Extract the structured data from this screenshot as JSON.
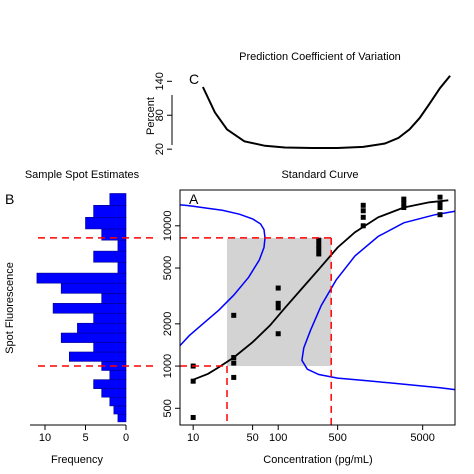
{
  "chart_data": [
    {
      "id": "C",
      "type": "line",
      "panel_letter": "C",
      "title": "Prediction Coefficient of Variation",
      "xlabel": "",
      "ylabel": "Percent",
      "xscale": "log",
      "xlim": [
        7,
        12000
      ],
      "ylim": [
        15,
        160
      ],
      "yticks": [
        20,
        80,
        140
      ],
      "series": [
        {
          "name": "",
          "color": "#000000",
          "x": [
            13,
            18,
            25,
            40,
            70,
            120,
            250,
            500,
            1000,
            1800,
            2600,
            3500,
            4600,
            6000,
            8000,
            10500
          ],
          "y": [
            130,
            85,
            55,
            34,
            26,
            23,
            22,
            22,
            24,
            30,
            40,
            55,
            75,
            100,
            128,
            150
          ]
        }
      ]
    },
    {
      "id": "B",
      "type": "bar",
      "orientation": "horizontal",
      "panel_letter": "B",
      "title": "Sample Spot Estimates",
      "xlabel": "Frequency",
      "ylabel": "Spot Fluorescence",
      "xlim": [
        12,
        0
      ],
      "xticks": [
        10,
        5,
        0
      ],
      "color": "#0000ff",
      "bins": [
        {
          "from": 400,
          "to": 455,
          "count": 1
        },
        {
          "from": 455,
          "to": 520,
          "count": 1.5
        },
        {
          "from": 520,
          "to": 600,
          "count": 2
        },
        {
          "from": 600,
          "to": 690,
          "count": 3
        },
        {
          "from": 690,
          "to": 800,
          "count": 4
        },
        {
          "from": 800,
          "to": 930,
          "count": 2
        },
        {
          "from": 930,
          "to": 1080,
          "count": 3
        },
        {
          "from": 1080,
          "to": 1260,
          "count": 7
        },
        {
          "from": 1260,
          "to": 1470,
          "count": 4
        },
        {
          "from": 1470,
          "to": 1720,
          "count": 8
        },
        {
          "from": 1720,
          "to": 2020,
          "count": 6
        },
        {
          "from": 2020,
          "to": 2380,
          "count": 4
        },
        {
          "from": 2380,
          "to": 2800,
          "count": 9
        },
        {
          "from": 2800,
          "to": 3300,
          "count": 3
        },
        {
          "from": 3300,
          "to": 3900,
          "count": 8
        },
        {
          "from": 3900,
          "to": 4600,
          "count": 11
        },
        {
          "from": 4600,
          "to": 5500,
          "count": 1
        },
        {
          "from": 5500,
          "to": 6600,
          "count": 4
        },
        {
          "from": 6600,
          "to": 7900,
          "count": 1
        },
        {
          "from": 7900,
          "to": 9500,
          "count": 3
        },
        {
          "from": 9500,
          "to": 11500,
          "count": 5
        },
        {
          "from": 11500,
          "to": 14000,
          "count": 4
        },
        {
          "from": 14000,
          "to": 17000,
          "count": 2
        }
      ]
    },
    {
      "id": "A",
      "type": "scatter",
      "panel_letter": "A",
      "title": "Standard Curve",
      "xlabel": "Concentration (pg/mL)",
      "ylabel": "",
      "xscale": "log",
      "yscale": "log",
      "xlim": [
        7,
        12000
      ],
      "ylim": [
        380,
        18000
      ],
      "xticks": [
        10,
        50,
        100,
        500,
        5000
      ],
      "yticks": [
        500,
        1000,
        2000,
        5000,
        10000
      ],
      "shaded_region": {
        "x": [
          25,
          420
        ],
        "y": [
          1000,
          8200
        ],
        "color": "#d3d3d3"
      },
      "reference_lines": {
        "y_low": 1000,
        "y_high": 8200,
        "x_low": 25,
        "x_high": 420,
        "color": "#ff0000"
      },
      "points": {
        "x": [
          10,
          10,
          10,
          30,
          30,
          30,
          30,
          100,
          100,
          100,
          100,
          300,
          300,
          300,
          300,
          1000,
          1000,
          1000,
          1000,
          3000,
          3000,
          3000,
          8000,
          8000,
          8000,
          8000
        ],
        "y": [
          430,
          780,
          1000,
          830,
          1050,
          1150,
          2300,
          1700,
          2600,
          2800,
          3600,
          6300,
          6800,
          7300,
          7900,
          10000,
          11500,
          12800,
          14000,
          13500,
          14500,
          15500,
          12000,
          13500,
          14500,
          16000
        ]
      },
      "fit_curve": {
        "color": "#000000",
        "x": [
          10,
          15,
          20,
          30,
          50,
          80,
          120,
          200,
          300,
          500,
          800,
          1500,
          3000,
          6000,
          10000
        ],
        "y": [
          800,
          880,
          980,
          1150,
          1480,
          1950,
          2600,
          3700,
          4900,
          7000,
          9000,
          11500,
          13500,
          14700,
          15200
        ]
      },
      "band_upper": {
        "color": "#0000ff",
        "x": [
          7,
          9,
          13,
          20,
          30,
          45,
          60,
          68,
          70,
          68,
          62,
          50,
          35,
          22,
          14,
          10,
          8,
          7
        ],
        "y": [
          1400,
          1650,
          2000,
          2500,
          3200,
          4300,
          5700,
          7000,
          8200,
          9400,
          10300,
          11200,
          12100,
          12900,
          13400,
          13800,
          14000,
          14100
        ]
      },
      "band_lower": {
        "color": "#0000ff",
        "x": [
          12000,
          8000,
          4000,
          2000,
          1000,
          500,
          300,
          220,
          190,
          200,
          240,
          320,
          480,
          800,
          1500,
          3000,
          7000,
          12000
        ],
        "y": [
          680,
          700,
          730,
          760,
          790,
          820,
          870,
          950,
          1100,
          1350,
          1800,
          2700,
          4100,
          6100,
          8400,
          10500,
          12000,
          12700
        ]
      }
    }
  ]
}
